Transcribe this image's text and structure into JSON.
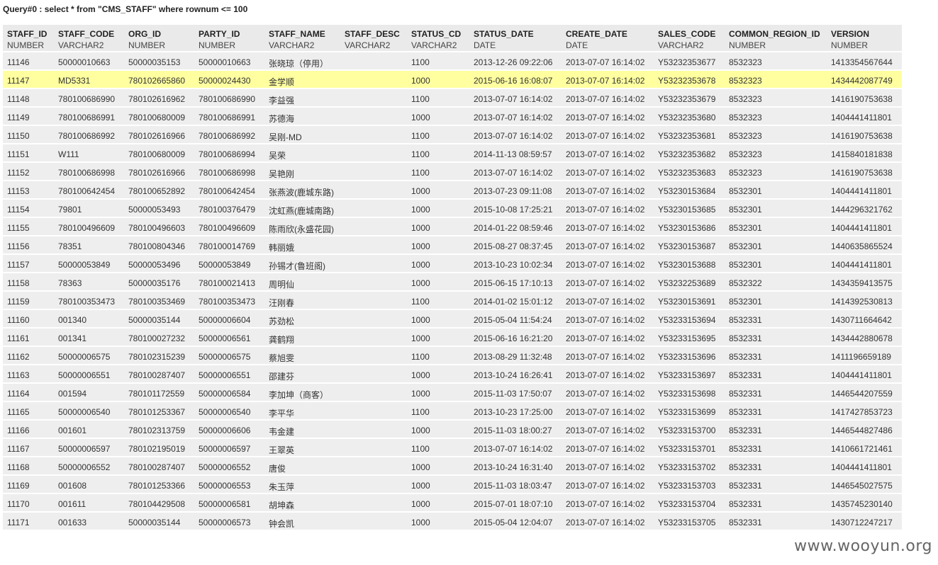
{
  "query": {
    "title": "Query#0 : select * from \"CMS_STAFF\" where rownum <= 100"
  },
  "columns": [
    {
      "name": "STAFF_ID",
      "type": "NUMBER"
    },
    {
      "name": "STAFF_CODE",
      "type": "VARCHAR2"
    },
    {
      "name": "ORG_ID",
      "type": "NUMBER"
    },
    {
      "name": "PARTY_ID",
      "type": "NUMBER"
    },
    {
      "name": "STAFF_NAME",
      "type": "VARCHAR2"
    },
    {
      "name": "STAFF_DESC",
      "type": "VARCHAR2"
    },
    {
      "name": "STATUS_CD",
      "type": "VARCHAR2"
    },
    {
      "name": "STATUS_DATE",
      "type": "DATE"
    },
    {
      "name": "CREATE_DATE",
      "type": "DATE"
    },
    {
      "name": "SALES_CODE",
      "type": "VARCHAR2"
    },
    {
      "name": "COMMON_REGION_ID",
      "type": "NUMBER"
    },
    {
      "name": "VERSION",
      "type": "NUMBER"
    }
  ],
  "highlight_color": "#ffffa0",
  "rows": [
    [
      "11146",
      "50000010663",
      "50000035153",
      "50000010663",
      "张晓琼（停用）",
      "",
      "1100",
      "2013-12-26 09:22:06",
      "2013-07-07 16:14:02",
      "Y53232353677",
      "8532323",
      "1413354567644"
    ],
    [
      "11147",
      "MD5331",
      "780102665860",
      "50000024430",
      "金学顺",
      "",
      "1000",
      "2015-06-16 16:08:07",
      "2013-07-07 16:14:02",
      "Y53232353678",
      "8532323",
      "1434442087749"
    ],
    [
      "11148",
      "780100686990",
      "780102616962",
      "780100686990",
      "李益强",
      "",
      "1100",
      "2013-07-07 16:14:02",
      "2013-07-07 16:14:02",
      "Y53232353679",
      "8532323",
      "1416190753638"
    ],
    [
      "11149",
      "780100686991",
      "780100680009",
      "780100686991",
      "苏德海",
      "",
      "1000",
      "2013-07-07 16:14:02",
      "2013-07-07 16:14:02",
      "Y53232353680",
      "8532323",
      "1404441411801"
    ],
    [
      "11150",
      "780100686992",
      "780102616966",
      "780100686992",
      "吴刚-MD",
      "",
      "1100",
      "2013-07-07 16:14:02",
      "2013-07-07 16:14:02",
      "Y53232353681",
      "8532323",
      "1416190753638"
    ],
    [
      "11151",
      "W111",
      "780100680009",
      "780100686994",
      "吴荣",
      "",
      "1100",
      "2014-11-13 08:59:57",
      "2013-07-07 16:14:02",
      "Y53232353682",
      "8532323",
      "1415840181838"
    ],
    [
      "11152",
      "780100686998",
      "780102616966",
      "780100686998",
      "吴艳刚",
      "",
      "1100",
      "2013-07-07 16:14:02",
      "2013-07-07 16:14:02",
      "Y53232353683",
      "8532323",
      "1416190753638"
    ],
    [
      "11153",
      "780100642454",
      "780100652892",
      "780100642454",
      "张燕波(鹿城东路)",
      "",
      "1000",
      "2013-07-23 09:11:08",
      "2013-07-07 16:14:02",
      "Y53230153684",
      "8532301",
      "1404441411801"
    ],
    [
      "11154",
      "79801",
      "50000053493",
      "780100376479",
      "沈虹燕(鹿城南路)",
      "",
      "1000",
      "2015-10-08 17:25:21",
      "2013-07-07 16:14:02",
      "Y53230153685",
      "8532301",
      "1444296321762"
    ],
    [
      "11155",
      "780100496609",
      "780100496603",
      "780100496609",
      "陈雨欣(永盛花园)",
      "",
      "1000",
      "2014-01-22 08:59:46",
      "2013-07-07 16:14:02",
      "Y53230153686",
      "8532301",
      "1404441411801"
    ],
    [
      "11156",
      "78351",
      "780100804346",
      "780100014769",
      "韩丽娥",
      "",
      "1000",
      "2015-08-27 08:37:45",
      "2013-07-07 16:14:02",
      "Y53230153687",
      "8532301",
      "1440635865524"
    ],
    [
      "11157",
      "50000053849",
      "50000053496",
      "50000053849",
      "孙锡才(鲁班阁)",
      "",
      "1000",
      "2013-10-23 10:02:34",
      "2013-07-07 16:14:02",
      "Y53230153688",
      "8532301",
      "1404441411801"
    ],
    [
      "11158",
      "78363",
      "50000035176",
      "780100021413",
      "周明仙",
      "",
      "1000",
      "2015-06-15 17:10:13",
      "2013-07-07 16:14:02",
      "Y53232253689",
      "8532322",
      "1434359413575"
    ],
    [
      "11159",
      "780100353473",
      "780100353469",
      "780100353473",
      "汪刚春",
      "",
      "1100",
      "2014-01-02 15:01:12",
      "2013-07-07 16:14:02",
      "Y53230153691",
      "8532301",
      "1414392530813"
    ],
    [
      "11160",
      "001340",
      "50000035144",
      "50000006604",
      "苏劲松",
      "",
      "1000",
      "2015-05-04 11:54:24",
      "2013-07-07 16:14:02",
      "Y53233153694",
      "8532331",
      "1430711664642"
    ],
    [
      "11161",
      "001341",
      "780100027232",
      "50000006561",
      "龚鹤翔",
      "",
      "1000",
      "2015-06-16 16:21:20",
      "2013-07-07 16:14:02",
      "Y53233153695",
      "8532331",
      "1434442880678"
    ],
    [
      "11162",
      "50000006575",
      "780102315239",
      "50000006575",
      "蔡旭雯",
      "",
      "1100",
      "2013-08-29 11:32:48",
      "2013-07-07 16:14:02",
      "Y53233153696",
      "8532331",
      "1411196659189"
    ],
    [
      "11163",
      "50000006551",
      "780100287407",
      "50000006551",
      "邵建芬",
      "",
      "1000",
      "2013-10-24 16:26:41",
      "2013-07-07 16:14:02",
      "Y53233153697",
      "8532331",
      "1404441411801"
    ],
    [
      "11164",
      "001594",
      "780101172559",
      "50000006584",
      "李加坤（商客）",
      "",
      "1000",
      "2015-11-03 17:50:07",
      "2013-07-07 16:14:02",
      "Y53233153698",
      "8532331",
      "1446544207559"
    ],
    [
      "11165",
      "50000006540",
      "780101253367",
      "50000006540",
      "李平华",
      "",
      "1100",
      "2013-10-23 17:25:00",
      "2013-07-07 16:14:02",
      "Y53233153699",
      "8532331",
      "1417427853723"
    ],
    [
      "11166",
      "001601",
      "780102313759",
      "50000006606",
      "韦金建",
      "",
      "1000",
      "2015-11-03 18:00:27",
      "2013-07-07 16:14:02",
      "Y53233153700",
      "8532331",
      "1446544827486"
    ],
    [
      "11167",
      "50000006597",
      "780102195019",
      "50000006597",
      "王翠英",
      "",
      "1100",
      "2013-07-07 16:14:02",
      "2013-07-07 16:14:02",
      "Y53233153701",
      "8532331",
      "1410661721461"
    ],
    [
      "11168",
      "50000006552",
      "780100287407",
      "50000006552",
      "唐俊",
      "",
      "1000",
      "2013-10-24 16:31:40",
      "2013-07-07 16:14:02",
      "Y53233153702",
      "8532331",
      "1404441411801"
    ],
    [
      "11169",
      "001608",
      "780101253366",
      "50000006553",
      "朱玉萍",
      "",
      "1000",
      "2015-11-03 18:03:47",
      "2013-07-07 16:14:02",
      "Y53233153703",
      "8532331",
      "1446545027575"
    ],
    [
      "11170",
      "001611",
      "780104429508",
      "50000006581",
      "胡坤森",
      "",
      "1000",
      "2015-07-01 18:07:10",
      "2013-07-07 16:14:02",
      "Y53233153704",
      "8532331",
      "1435745230140"
    ],
    [
      "11171",
      "001633",
      "50000035144",
      "50000006573",
      "钟会凯",
      "",
      "1000",
      "2015-05-04 12:04:07",
      "2013-07-07 16:14:02",
      "Y53233153705",
      "8532331",
      "1430712247217"
    ]
  ],
  "highlighted_row_index": 1,
  "watermark": "www.wooyun.org"
}
